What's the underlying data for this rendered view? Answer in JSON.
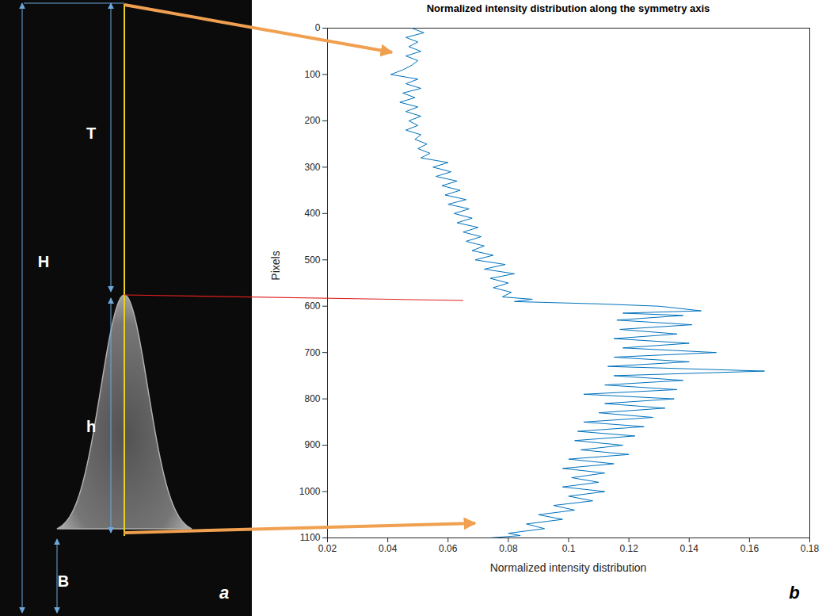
{
  "chart_data": {
    "type": "line",
    "title": "Normalized intensity distribution along the symmetry axis",
    "xlabel": "Normalized intensity distribution",
    "ylabel": "Pixels",
    "y": [
      0,
      10,
      20,
      30,
      40,
      50,
      60,
      70,
      80,
      90,
      100,
      110,
      120,
      130,
      140,
      150,
      160,
      170,
      180,
      190,
      200,
      210,
      220,
      230,
      240,
      250,
      260,
      270,
      280,
      290,
      300,
      310,
      320,
      330,
      340,
      350,
      360,
      370,
      380,
      390,
      400,
      410,
      420,
      430,
      440,
      450,
      460,
      470,
      480,
      490,
      500,
      510,
      520,
      530,
      540,
      550,
      560,
      570,
      580,
      585,
      590,
      595,
      600,
      610,
      615,
      620,
      630,
      640,
      650,
      660,
      670,
      680,
      690,
      700,
      710,
      720,
      730,
      740,
      750,
      760,
      770,
      780,
      790,
      800,
      810,
      820,
      830,
      840,
      850,
      860,
      870,
      880,
      890,
      900,
      910,
      920,
      930,
      940,
      950,
      960,
      970,
      980,
      990,
      1000,
      1010,
      1020,
      1030,
      1040,
      1050,
      1060,
      1070,
      1080,
      1090,
      1095,
      1100
    ],
    "values": [
      0.048,
      0.052,
      0.046,
      0.05,
      0.047,
      0.051,
      0.046,
      0.05,
      0.048,
      0.045,
      0.041,
      0.05,
      0.046,
      0.051,
      0.045,
      0.049,
      0.044,
      0.05,
      0.046,
      0.051,
      0.047,
      0.05,
      0.046,
      0.051,
      0.049,
      0.053,
      0.05,
      0.054,
      0.051,
      0.06,
      0.055,
      0.061,
      0.056,
      0.063,
      0.058,
      0.064,
      0.059,
      0.066,
      0.06,
      0.067,
      0.062,
      0.068,
      0.063,
      0.07,
      0.065,
      0.071,
      0.066,
      0.072,
      0.068,
      0.075,
      0.069,
      0.079,
      0.072,
      0.082,
      0.074,
      0.08,
      0.075,
      0.081,
      0.078,
      0.088,
      0.082,
      0.11,
      0.13,
      0.144,
      0.118,
      0.138,
      0.116,
      0.141,
      0.117,
      0.136,
      0.115,
      0.14,
      0.118,
      0.149,
      0.115,
      0.14,
      0.113,
      0.165,
      0.115,
      0.138,
      0.112,
      0.136,
      0.105,
      0.135,
      0.112,
      0.132,
      0.11,
      0.128,
      0.105,
      0.125,
      0.103,
      0.122,
      0.102,
      0.118,
      0.104,
      0.12,
      0.1,
      0.115,
      0.098,
      0.112,
      0.101,
      0.11,
      0.098,
      0.112,
      0.1,
      0.108,
      0.095,
      0.102,
      0.09,
      0.098,
      0.086,
      0.092,
      0.08,
      0.084,
      0.074
    ],
    "color": "#0072BD",
    "xlim": [
      0.02,
      0.18
    ],
    "xticks": [
      0.02,
      0.04,
      0.06,
      0.08,
      0.1,
      0.12,
      0.14,
      0.16,
      0.18
    ],
    "ylim": [
      1100,
      0
    ],
    "yticks": [
      0,
      100,
      200,
      300,
      400,
      500,
      600,
      700,
      800,
      900,
      1000,
      1100
    ],
    "grid": false
  },
  "figure": {
    "image_labels": [
      "H",
      "T",
      "h",
      "B"
    ],
    "panel_labels": [
      "a",
      "b"
    ]
  }
}
